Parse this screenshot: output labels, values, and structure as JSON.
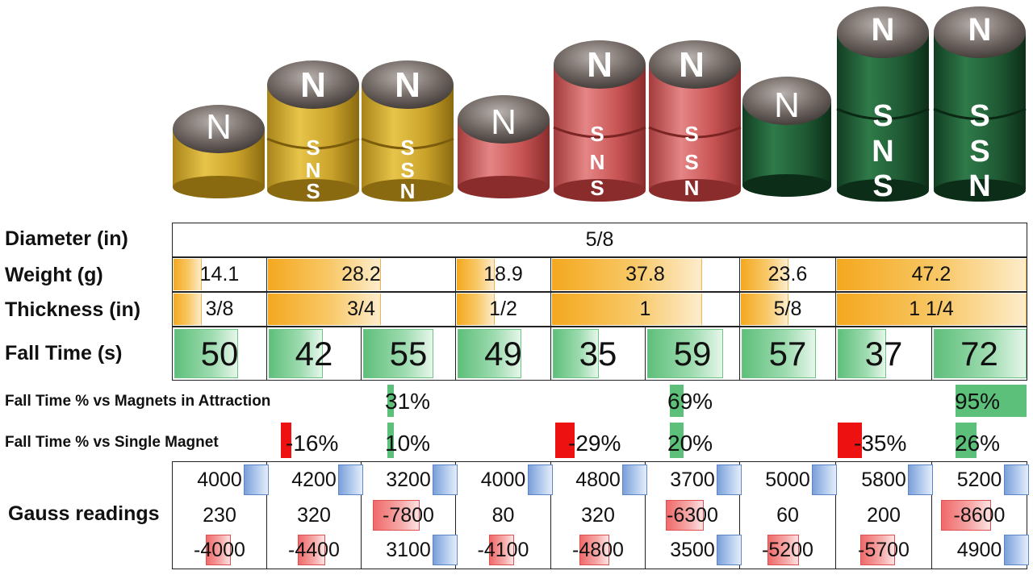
{
  "magnets": {
    "groups": [
      {
        "color": "gold",
        "stacks": [
          [
            "N"
          ],
          [
            "N",
            "S",
            "N",
            "S"
          ],
          [
            "N",
            "S",
            "S",
            "N"
          ]
        ]
      },
      {
        "color": "red",
        "stacks": [
          [
            "N"
          ],
          [
            "N",
            "S",
            "N",
            "S"
          ],
          [
            "N",
            "S",
            "S",
            "N"
          ]
        ]
      },
      {
        "color": "green",
        "stacks": [
          [
            "N"
          ],
          [
            "N",
            "S",
            "N",
            "S"
          ],
          [
            "N",
            "S",
            "S",
            "N"
          ]
        ]
      }
    ],
    "colors": {
      "gold": "#c9a22a",
      "red": "#c85454",
      "green": "#1f5a34",
      "top": "#5a524d"
    }
  },
  "labels": {
    "diameter": "Diameter (in)",
    "weight": "Weight (g)",
    "thickness": "Thickness (in)",
    "fall_time": "Fall Time (s)",
    "fall_attr": "Fall Time % vs Magnets in Attraction",
    "fall_single": "Fall Time % vs Single Magnet",
    "gauss": "Gauss readings"
  },
  "diameter": "5/8",
  "weight": [
    "14.1",
    "28.2",
    "18.9",
    "37.8",
    "23.6",
    "47.2"
  ],
  "weight_fill": [
    0.3,
    0.6,
    0.4,
    0.8,
    0.5,
    1.0
  ],
  "thickness": [
    "3/8",
    "3/4",
    "1/2",
    "1",
    "5/8",
    "1 1/4"
  ],
  "thickness_fill": [
    0.3,
    0.6,
    0.4,
    0.8,
    0.5,
    1.0
  ],
  "fall_time": [
    "50",
    "42",
    "55",
    "49",
    "35",
    "59",
    "57",
    "37",
    "72"
  ],
  "fall_time_fill": [
    0.69,
    0.58,
    0.76,
    0.68,
    0.49,
    0.82,
    0.79,
    0.51,
    1.0
  ],
  "fall_attr": {
    "g1": "31%",
    "g2": "69%",
    "g3": "95%"
  },
  "fall_single": {
    "g1a": "-16%",
    "g1b": "10%",
    "g2a": "-29%",
    "g2b": "20%",
    "g3a": "-35%",
    "g3b": "26%"
  },
  "gauss": [
    [
      "4000",
      "230",
      "-4000"
    ],
    [
      "4200",
      "320",
      "-4400"
    ],
    [
      "3200",
      "-7800",
      "3100"
    ],
    [
      "4000",
      "80",
      "-4100"
    ],
    [
      "4800",
      "320",
      "-4800"
    ],
    [
      "3700",
      "-6300",
      "3500"
    ],
    [
      "5000",
      "60",
      "-5200"
    ],
    [
      "5800",
      "200",
      "-5700"
    ],
    [
      "5200",
      "-8600",
      "4900"
    ]
  ]
}
